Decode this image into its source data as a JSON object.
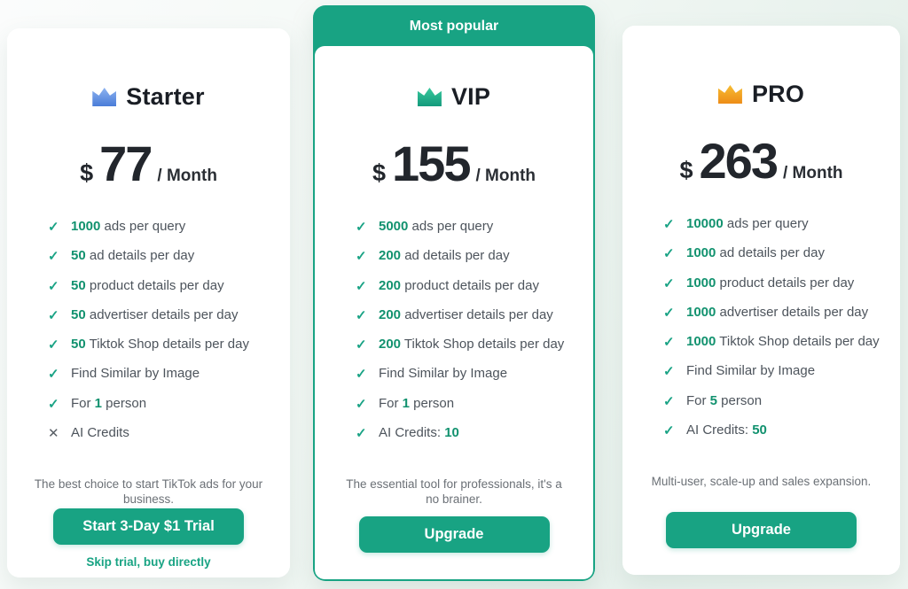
{
  "theme": {
    "accent": "#18a383",
    "number_green": "#12926f",
    "check_green": "#1aa385",
    "cross_gray": "#595f66",
    "text_gray": "#4d545c",
    "desc_gray": "#6b7076",
    "title_dark": "#1a1e25"
  },
  "icons": {
    "check": "✓",
    "cross": "✕"
  },
  "cards": [
    {
      "id": "starter",
      "badge": null,
      "title": "Starter",
      "crown_colors": [
        "#8db3f0",
        "#4a7cd8"
      ],
      "currency": "$",
      "price": "77",
      "period": "/ Month",
      "features": [
        {
          "included": true,
          "pre": "",
          "strong": "1000",
          "post": " ads per query"
        },
        {
          "included": true,
          "pre": "",
          "strong": "50",
          "post": " ad details per day"
        },
        {
          "included": true,
          "pre": "",
          "strong": "50",
          "post": " product details per day"
        },
        {
          "included": true,
          "pre": "",
          "strong": "50",
          "post": " advertiser details per day"
        },
        {
          "included": true,
          "pre": "",
          "strong": "50",
          "post": " Tiktok Shop details per day"
        },
        {
          "included": true,
          "pre": "Find Similar by Image",
          "strong": "",
          "post": ""
        },
        {
          "included": true,
          "pre": "For ",
          "strong": "1",
          "post": " person"
        },
        {
          "included": false,
          "pre": "AI Credits",
          "strong": "",
          "post": ""
        }
      ],
      "description": "The best choice to start TikTok ads for your business.",
      "button": "Start 3-Day $1 Trial",
      "link": "Skip trial, buy directly"
    },
    {
      "id": "vip",
      "badge": "Most popular",
      "title": "VIP",
      "crown_colors": [
        "#38c89d",
        "#149a7c"
      ],
      "currency": "$",
      "price": "155",
      "period": "/ Month",
      "features": [
        {
          "included": true,
          "pre": "",
          "strong": "5000",
          "post": " ads per query"
        },
        {
          "included": true,
          "pre": "",
          "strong": "200",
          "post": " ad details per day"
        },
        {
          "included": true,
          "pre": "",
          "strong": "200",
          "post": " product details per day"
        },
        {
          "included": true,
          "pre": "",
          "strong": "200",
          "post": " advertiser details per day"
        },
        {
          "included": true,
          "pre": "",
          "strong": "200",
          "post": " Tiktok Shop details per day"
        },
        {
          "included": true,
          "pre": "Find Similar by Image",
          "strong": "",
          "post": ""
        },
        {
          "included": true,
          "pre": "For ",
          "strong": "1",
          "post": " person"
        },
        {
          "included": true,
          "pre": "AI Credits: ",
          "strong": "10",
          "post": ""
        }
      ],
      "description": "The essential tool for professionals, it's a no brainer.",
      "button": "Upgrade",
      "link": null
    },
    {
      "id": "pro",
      "badge": null,
      "title": "PRO",
      "crown_colors": [
        "#f7bd33",
        "#ed8c17"
      ],
      "currency": "$",
      "price": "263",
      "period": "/ Month",
      "features": [
        {
          "included": true,
          "pre": "",
          "strong": "10000",
          "post": " ads per query"
        },
        {
          "included": true,
          "pre": "",
          "strong": "1000",
          "post": " ad details per day"
        },
        {
          "included": true,
          "pre": "",
          "strong": "1000",
          "post": " product details per day"
        },
        {
          "included": true,
          "pre": "",
          "strong": "1000",
          "post": " advertiser details per day"
        },
        {
          "included": true,
          "pre": "",
          "strong": "1000",
          "post": " Tiktok Shop details per day"
        },
        {
          "included": true,
          "pre": "Find Similar by Image",
          "strong": "",
          "post": ""
        },
        {
          "included": true,
          "pre": "For ",
          "strong": "5",
          "post": " person"
        },
        {
          "included": true,
          "pre": "AI Credits: ",
          "strong": "50",
          "post": ""
        }
      ],
      "description": "Multi-user, scale-up and sales expansion.",
      "button": "Upgrade",
      "link": null
    }
  ]
}
